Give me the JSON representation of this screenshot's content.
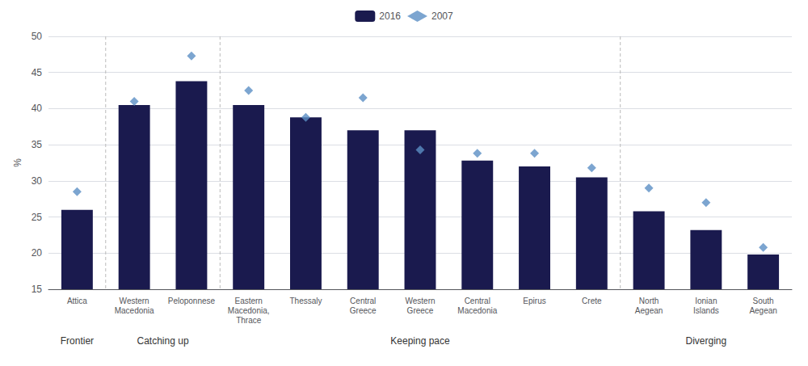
{
  "chart_data": {
    "type": "bar",
    "categories": [
      "Attica",
      "Western\nMacedonia",
      "Peloponnese",
      "Eastern\nMacedonia,\nThrace",
      "Thessaly",
      "Central\nGreece",
      "Western\nGreece",
      "Central\nMacedonia",
      "Epirus",
      "Crete",
      "North\nAegean",
      "Ionian\nIslands",
      "South\nAegean"
    ],
    "series": [
      {
        "name": "2016",
        "type": "bar",
        "color": "#1a1a4e",
        "values": [
          26.0,
          40.5,
          43.8,
          40.5,
          38.8,
          37.0,
          37.0,
          32.8,
          32.0,
          30.5,
          25.8,
          23.2,
          19.8
        ]
      },
      {
        "name": "2007",
        "type": "scatter",
        "marker": "diamond",
        "color": "#5b8ec4",
        "values": [
          28.5,
          41.0,
          47.3,
          42.5,
          38.8,
          41.5,
          34.3,
          33.8,
          33.8,
          31.8,
          29.0,
          27.0,
          20.8
        ]
      }
    ],
    "ylabel": "%",
    "ylim": [
      15,
      50
    ],
    "yticks": [
      15,
      20,
      25,
      30,
      35,
      40,
      45,
      50
    ],
    "grid": true,
    "legend": "top",
    "annotations": [
      {
        "text": "Frontier",
        "from": "Attica",
        "to": "Attica"
      },
      {
        "text": "Catching up",
        "from": "Western\nMacedonia",
        "to": "Peloponnese"
      },
      {
        "text": "Keeping pace",
        "from": "Eastern\nMacedonia,\nThrace",
        "to": "Crete"
      },
      {
        "text": "Diverging",
        "from": "North\nAegean",
        "to": "South\nAegean"
      }
    ]
  }
}
